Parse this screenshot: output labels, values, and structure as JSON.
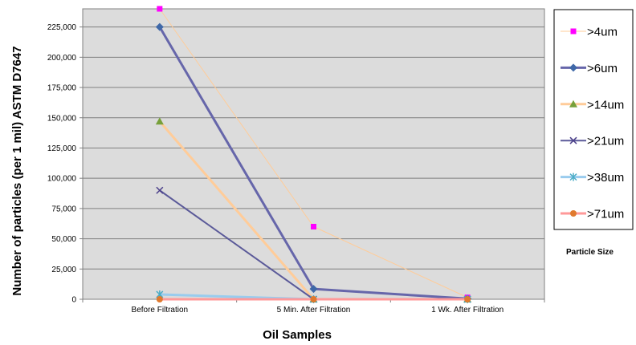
{
  "chart_data": {
    "type": "line",
    "xlabel": "Oil Samples",
    "ylabel": "Number of particles (per 1 mil)  ASTM D7647",
    "categories": [
      "Before Filtration",
      "5 Min. After Filtration",
      "1 Wk. After Filtration"
    ],
    "ylim": [
      0,
      240000
    ],
    "yticks": [
      0,
      25000,
      50000,
      75000,
      100000,
      125000,
      150000,
      175000,
      200000,
      225000
    ],
    "ytick_labels": [
      "0",
      "25,000",
      "50,000",
      "75,000",
      "100,000",
      "125,000",
      "150,000",
      "175,000",
      "200,000",
      "225,000"
    ],
    "grid": "horizontal",
    "legend_position": "right",
    "legend_title": "Particle Size",
    "series": [
      {
        "name": ">4um",
        "values": [
          240000,
          60000,
          1500
        ],
        "color": "#FFCC99",
        "marker": "square",
        "marker_color": "#FF00FF",
        "line_width": 1
      },
      {
        "name": ">6um",
        "values": [
          225000,
          8500,
          500
        ],
        "color": "#6666AA",
        "marker": "diamond",
        "marker_color": "#3F68A8",
        "line_width": 3
      },
      {
        "name": ">14um",
        "values": [
          147000,
          0,
          0
        ],
        "color": "#FFCC99",
        "marker": "triangle",
        "marker_color": "#77A03A",
        "line_width": 3
      },
      {
        "name": ">21um",
        "values": [
          90000,
          0,
          0
        ],
        "color": "#5B5A99",
        "marker": "x",
        "marker_color": "#4B3F8A",
        "line_width": 2
      },
      {
        "name": ">38um",
        "values": [
          4000,
          0,
          0
        ],
        "color": "#99CCEE",
        "marker": "star",
        "marker_color": "#4BACC6",
        "line_width": 3
      },
      {
        "name": ">71um",
        "values": [
          0,
          0,
          0
        ],
        "color": "#FF9999",
        "marker": "circle",
        "marker_color": "#E07A2E",
        "line_width": 3
      }
    ]
  }
}
